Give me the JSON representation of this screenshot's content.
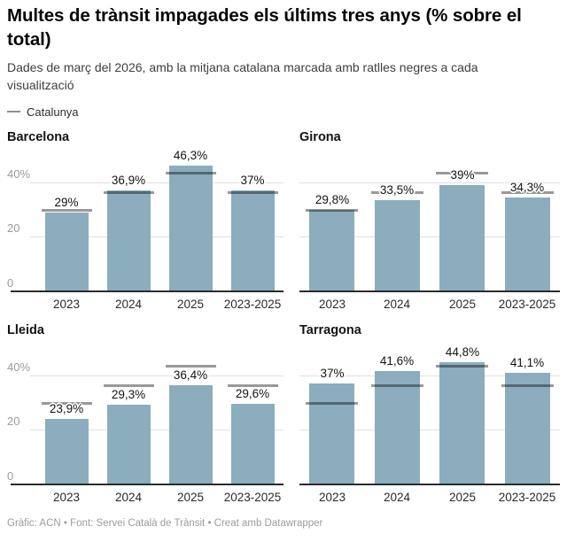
{
  "header": {
    "title": "Multes de trànsit impagades els últims tres anys (% sobre el total)",
    "subtitle": "Dades de març del 2026, amb la mitjana catalana marcada amb ratlles negres a cada visualització",
    "legend_label": "Catalunya"
  },
  "chart_data": {
    "type": "bar",
    "layout": "small-multiples-2x2",
    "categories": [
      "2023",
      "2024",
      "2025",
      "2023-2025"
    ],
    "unit": "%",
    "ylim": [
      0,
      52
    ],
    "yticks": [
      {
        "value": 0,
        "label": "0"
      },
      {
        "value": 20,
        "label": "20"
      },
      {
        "value": 40,
        "label": "40%"
      }
    ],
    "grid": true,
    "legend_position": "top-left",
    "catalunya_average_estimated": [
      29.9,
      36.3,
      43.5,
      36.5
    ],
    "panels": [
      {
        "title": "Barcelona",
        "values": [
          29,
          36.9,
          46.3,
          37
        ],
        "value_labels": [
          "29%",
          "36,9%",
          "46,3%",
          "37%"
        ],
        "y_axis_labels": true
      },
      {
        "title": "Girona",
        "values": [
          29.8,
          33.5,
          39,
          34.3
        ],
        "value_labels": [
          "29,8%",
          "33,5%",
          "39%",
          "34,3%"
        ],
        "y_axis_labels": false
      },
      {
        "title": "Lleida",
        "values": [
          23.9,
          29.3,
          36.4,
          29.6
        ],
        "value_labels": [
          "23,9%",
          "29,3%",
          "36,4%",
          "29,6%"
        ],
        "y_axis_labels": true
      },
      {
        "title": "Tarragona",
        "values": [
          37,
          41.6,
          44.8,
          41.1
        ],
        "value_labels": [
          "37%",
          "41,6%",
          "44,8%",
          "41,1%"
        ],
        "y_axis_labels": false
      }
    ],
    "colors": {
      "bar": "#8badbd",
      "average_line": "rgba(0,0,0,0.40)",
      "gridline": "#e0e0e0",
      "baseline": "#2b2b2b",
      "y_axis_text": "#9b9b9b",
      "x_axis_text": "#2a2a2a"
    }
  },
  "footer": {
    "text": "Gràfic: ACN • Font: Servei Català de Trànsit • Creat amb Datawrapper"
  }
}
